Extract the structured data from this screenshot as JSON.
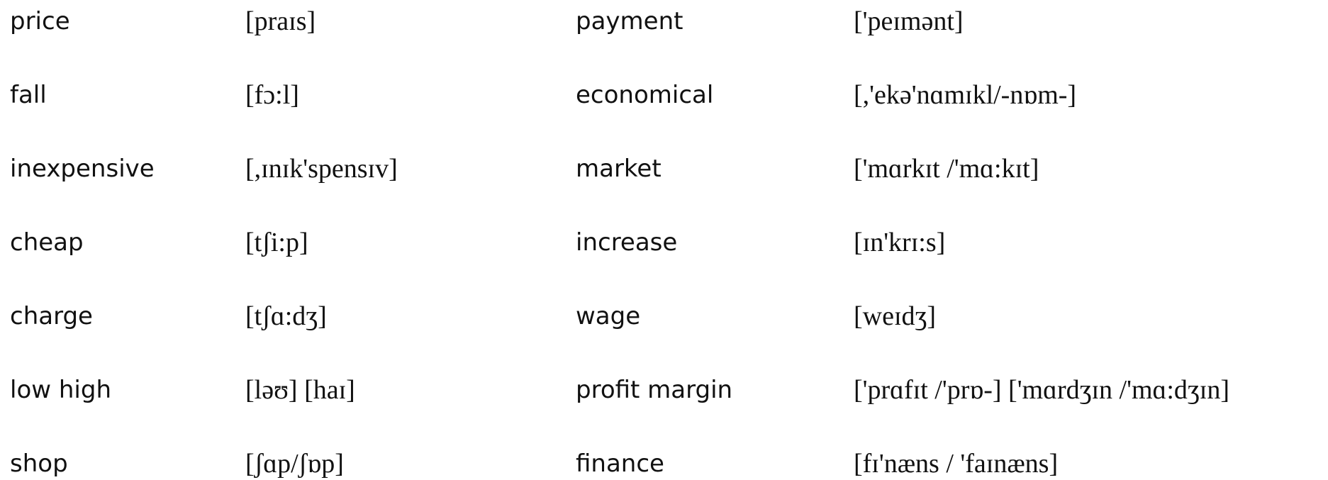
{
  "rows": [
    [
      "price",
      "[praɪs]",
      "payment",
      "['peɪmənt]"
    ],
    [
      "fall",
      "[fɔ:l]",
      "economical",
      "[,'ekə'nɑmɪkl/-nɒm-]"
    ],
    [
      "inexpensive",
      "[,ɪnɪk'spensɪv]",
      "market",
      "['mɑrkɪt /'mɑ:kɪt]"
    ],
    [
      "cheap",
      "[tʃi:p]",
      "increase",
      "[ɪn'krɪ:s]"
    ],
    [
      "charge",
      "[tʃɑ:dʒ]",
      "wage",
      "[weɪdʒ]"
    ],
    [
      "low high",
      "[ləʊ] [haɪ]",
      "profit margin",
      "['prɑfɪt /'prɒ-] ['mɑrdʒɪn /'mɑ:dʒɪn]"
    ],
    [
      "shop",
      "[ʃɑp/ʃɒp]",
      "finance",
      "[fɪ'næns / 'faɪnæns]"
    ]
  ]
}
